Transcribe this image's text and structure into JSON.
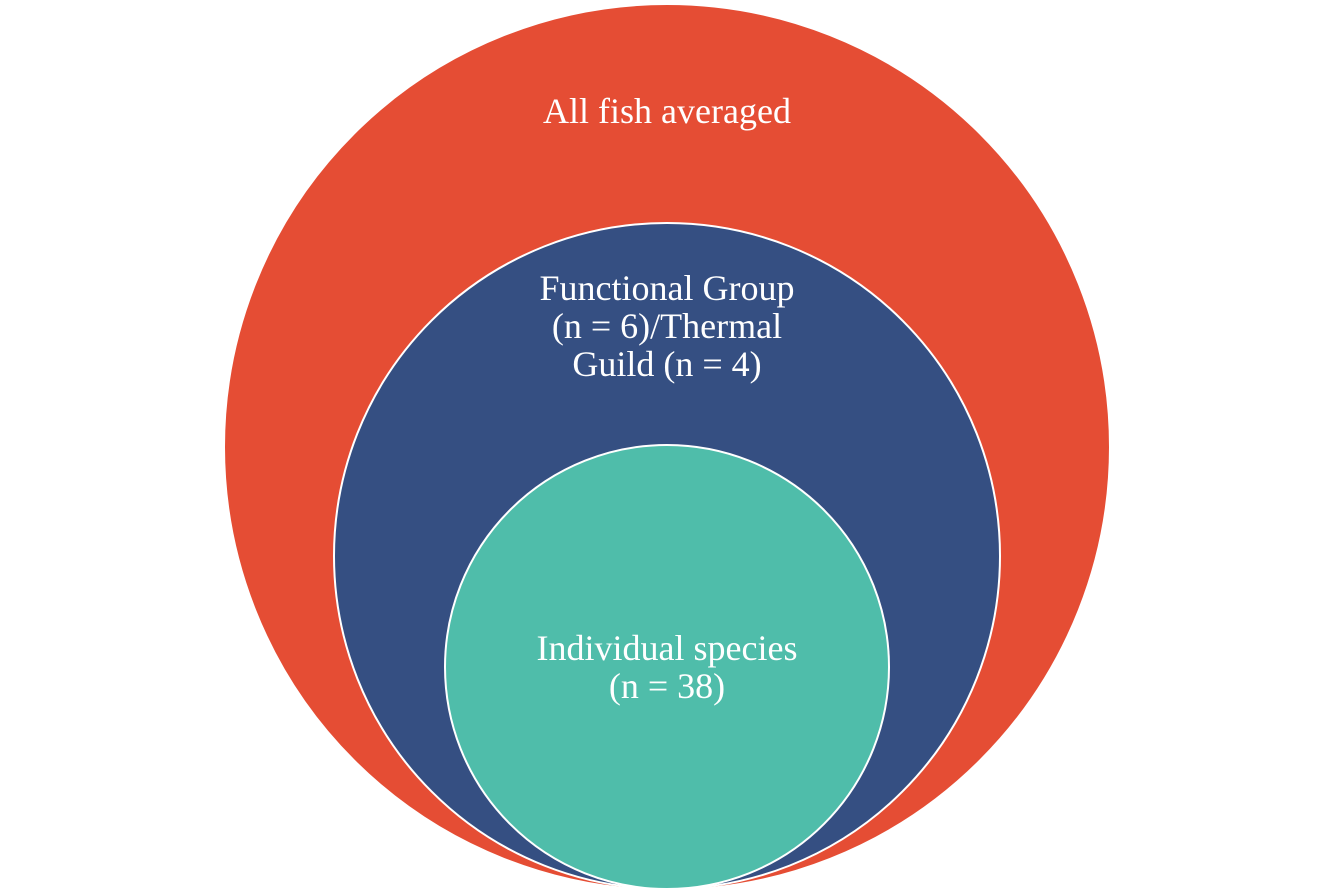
{
  "diagram": {
    "type": "nested-circles",
    "colors": {
      "outer": "#e54d34",
      "middle": "#354f82",
      "inner": "#4fbdaa",
      "stroke": "#ffffff"
    },
    "outer": {
      "label": "All fish averaged"
    },
    "middle": {
      "lines": [
        "Functional Group",
        "(n = 6)/Thermal",
        "Guild (n = 4)"
      ]
    },
    "inner": {
      "lines": [
        "Individual species",
        "(n = 38)"
      ]
    }
  }
}
